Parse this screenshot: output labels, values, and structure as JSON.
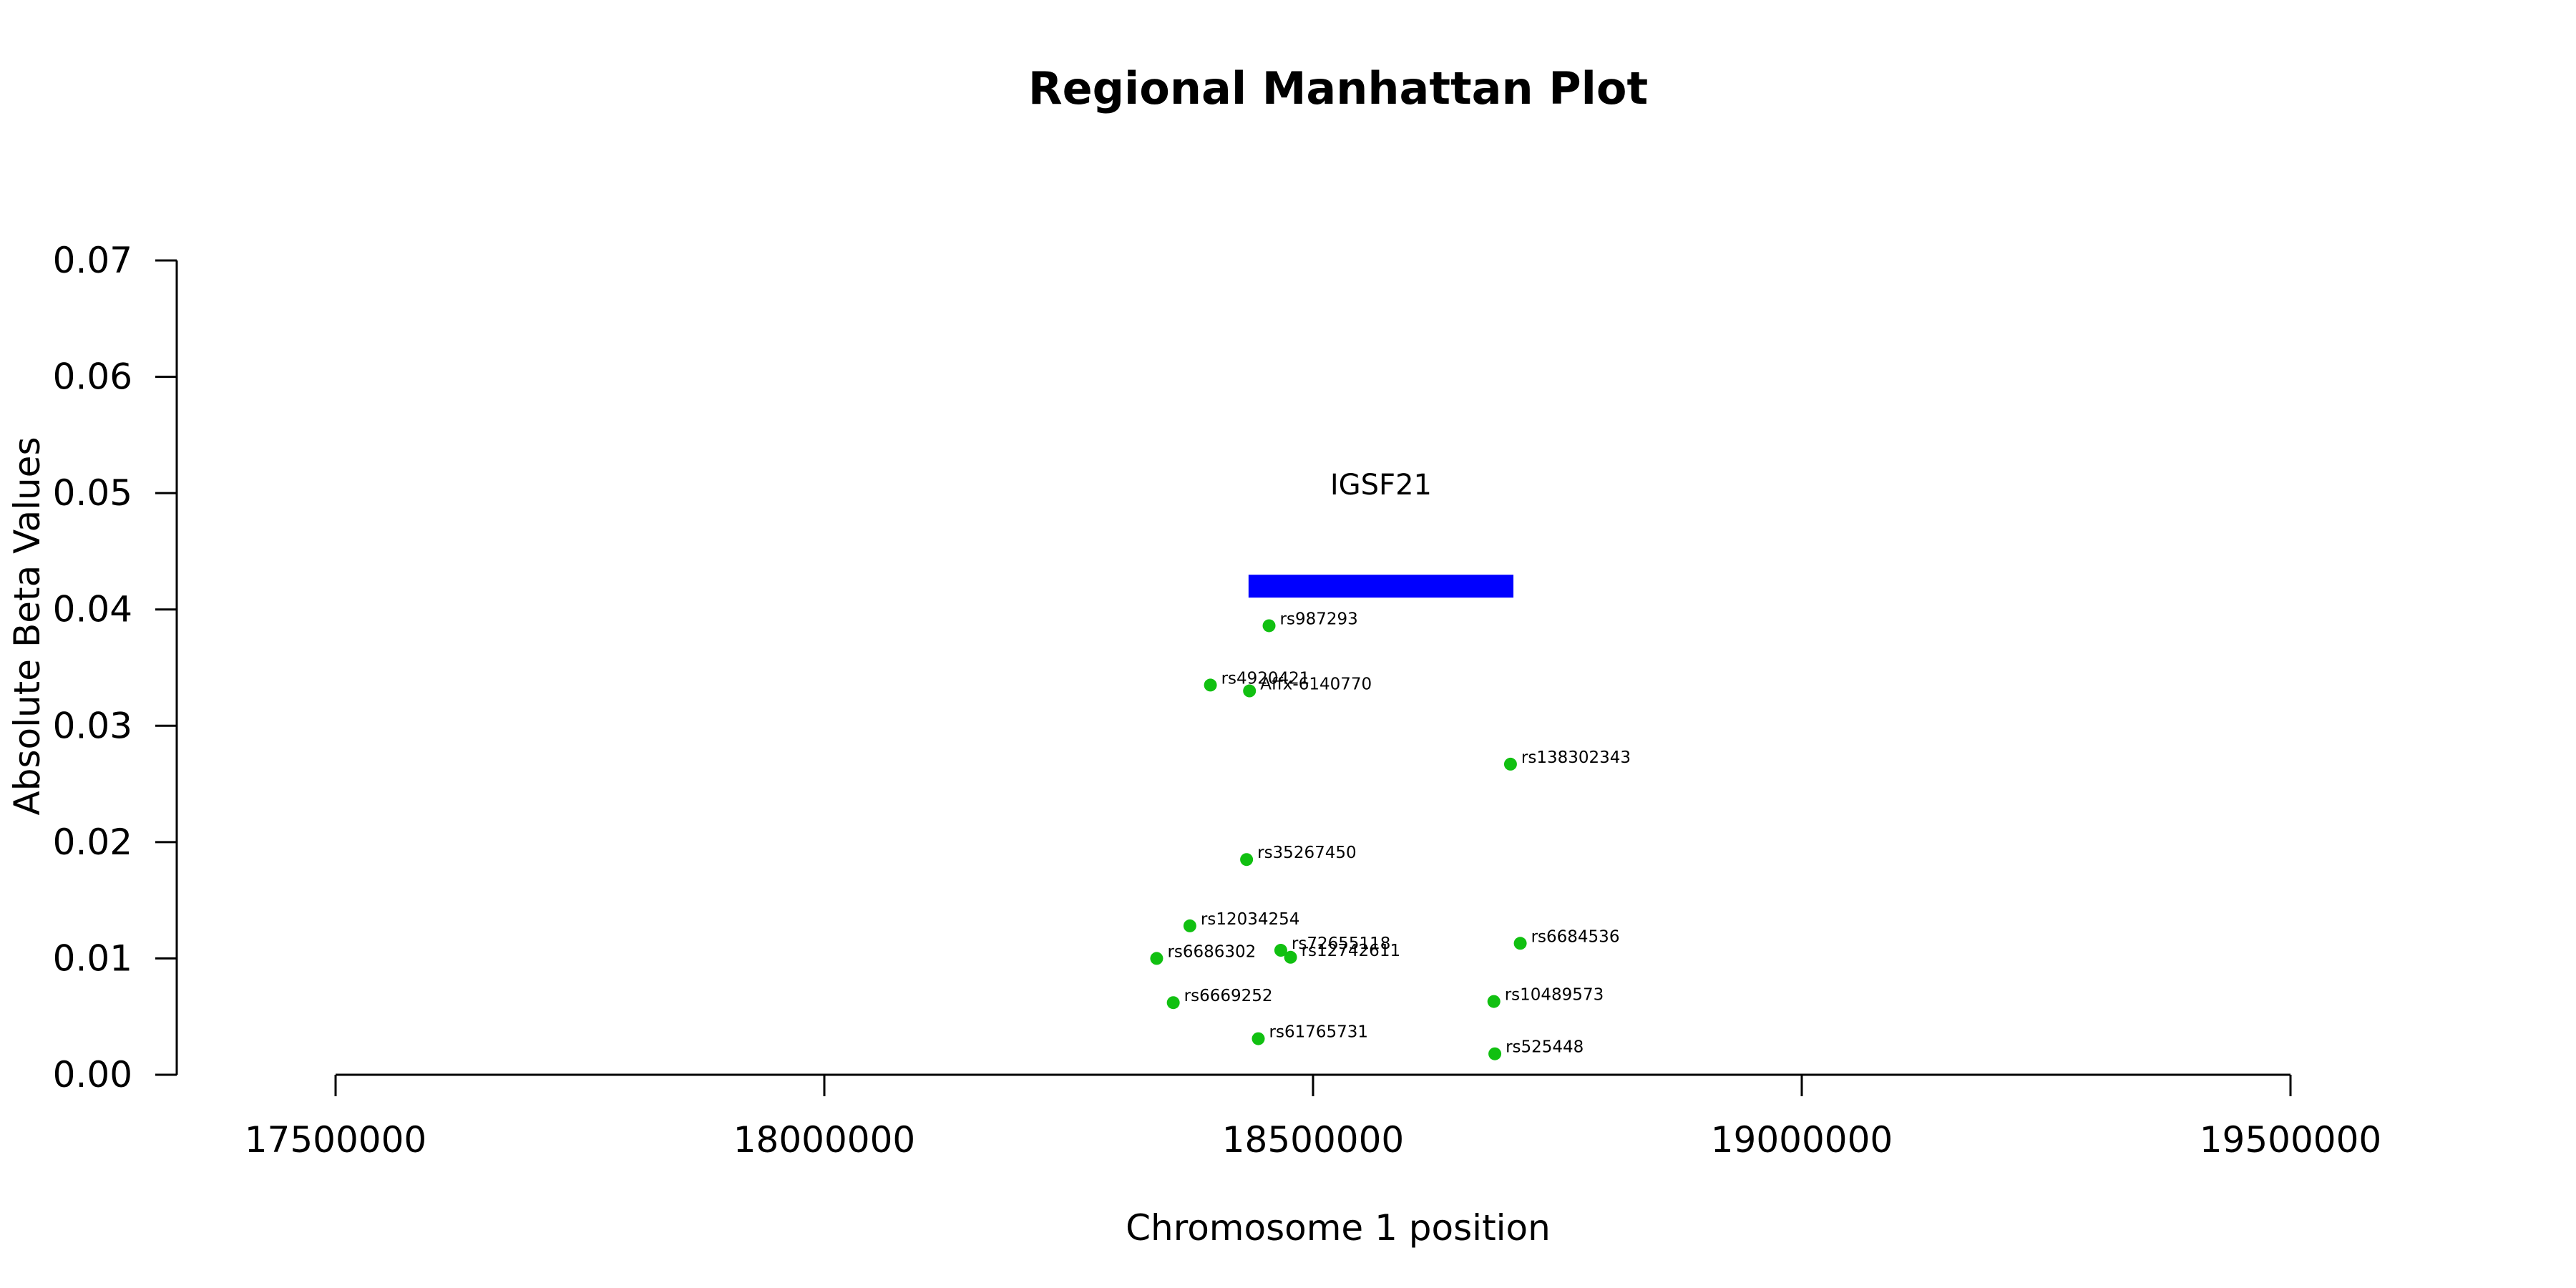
{
  "chart_data": {
    "type": "scatter",
    "title": "Regional Manhattan Plot",
    "xlabel": "Chromosome 1 position",
    "ylabel": "Absolute Beta Values",
    "xlim": [
      17500000,
      19500000
    ],
    "ylim": [
      0,
      0.07
    ],
    "x_ticks": [
      "17500000",
      "18000000",
      "18500000",
      "19000000",
      "19500000"
    ],
    "y_ticks": [
      "0.00",
      "0.01",
      "0.02",
      "0.03",
      "0.04",
      "0.05",
      "0.06",
      "0.07"
    ],
    "point_color": "#11c011",
    "points": [
      {
        "label": "rs987293",
        "x": 18455000,
        "y": 0.0386
      },
      {
        "label": "rs4920421",
        "x": 18395000,
        "y": 0.0335
      },
      {
        "label": "Affx-6140770",
        "x": 18435000,
        "y": 0.033
      },
      {
        "label": "rs138302343",
        "x": 18702000,
        "y": 0.0267
      },
      {
        "label": "rs35267450",
        "x": 18432000,
        "y": 0.0185
      },
      {
        "label": "rs12034254",
        "x": 18374000,
        "y": 0.0128
      },
      {
        "label": "rs6684536",
        "x": 18712000,
        "y": 0.0113
      },
      {
        "label": "rs72655118",
        "x": 18467000,
        "y": 0.0107
      },
      {
        "label": "rs12742611",
        "x": 18477000,
        "y": 0.0101
      },
      {
        "label": "rs6686302",
        "x": 18340000,
        "y": 0.01
      },
      {
        "label": "rs6669252",
        "x": 18357000,
        "y": 0.0062
      },
      {
        "label": "rs10489573",
        "x": 18685000,
        "y": 0.0063
      },
      {
        "label": "rs61765731",
        "x": 18444000,
        "y": 0.0031
      },
      {
        "label": "rs525448",
        "x": 18686000,
        "y": 0.0018
      }
    ],
    "genes": [
      {
        "name": "IGSF21",
        "start": 18434000,
        "end": 18705000,
        "y": 0.042,
        "color": "#0000ff"
      }
    ]
  }
}
